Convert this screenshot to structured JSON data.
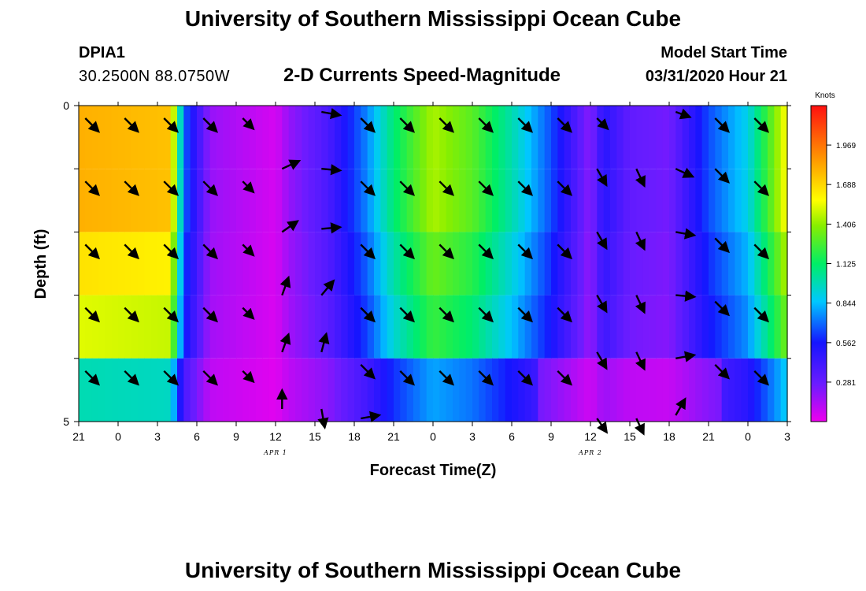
{
  "header": {
    "title": "University of Southern Mississippi Ocean Cube",
    "station": "DPIA1",
    "coords": "30.2500N 88.0750W",
    "subtitle": "2-D Currents Speed-Magnitude",
    "model_start_label": "Model Start Time",
    "model_start_value": "03/31/2020 Hour 21"
  },
  "footer": {
    "title": "University of Southern Mississippi Ocean Cube"
  },
  "chart_data": {
    "type": "heatmap",
    "title": "2-D Currents Speed-Magnitude",
    "xlabel": "Forecast Time(Z)",
    "ylabel": "Depth (ft)",
    "x_ticks": [
      "21",
      "0",
      "3",
      "6",
      "9",
      "12",
      "15",
      "18",
      "21",
      "0",
      "3",
      "6",
      "9",
      "12",
      "15",
      "18",
      "21",
      "0",
      "3"
    ],
    "x_start_hour": 21,
    "x_end_hour": 75,
    "day_labels": [
      {
        "text": "APR 1",
        "hour": 36
      },
      {
        "text": "APR 2",
        "hour": 60
      }
    ],
    "y_ticks": [
      "0",
      "5"
    ],
    "ylim": [
      0,
      5
    ],
    "depth_levels": 5,
    "colorbar": {
      "label": "Knots",
      "ticks": [
        "1.969",
        "1.688",
        "1.406",
        "1.125",
        "0.844",
        "0.562",
        "0.281"
      ],
      "min": 0,
      "max": 2.25
    },
    "speed_profile": {
      "hours": [
        21,
        28,
        29,
        31,
        36,
        37,
        40,
        43,
        45,
        48,
        51,
        54,
        57,
        60,
        61,
        63,
        66,
        69,
        72,
        75
      ],
      "values": [
        1.8,
        1.75,
        0.7,
        0.18,
        0.05,
        0.18,
        0.38,
        0.75,
        1.1,
        1.45,
        1.3,
        1.0,
        0.65,
        0.2,
        0.5,
        0.3,
        0.25,
        0.65,
        0.9,
        1.6
      ]
    },
    "depth_factors": [
      1.0,
      1.0,
      0.92,
      0.85,
      0.55,
      0.45
    ],
    "arrows": [
      {
        "hour": 21.5,
        "depth": 0.2,
        "dir": 135,
        "len": 1.0
      },
      {
        "hour": 24.5,
        "depth": 0.2,
        "dir": 135,
        "len": 1.0
      },
      {
        "hour": 27.5,
        "depth": 0.2,
        "dir": 135,
        "len": 1.0
      },
      {
        "hour": 30.5,
        "depth": 0.2,
        "dir": 135,
        "len": 1.0
      },
      {
        "hour": 33.5,
        "depth": 0.2,
        "dir": 135,
        "len": 0.8
      },
      {
        "hour": 39.5,
        "depth": 0.1,
        "dir": 100,
        "len": 1.0
      },
      {
        "hour": 42.5,
        "depth": 0.2,
        "dir": 135,
        "len": 1.0
      },
      {
        "hour": 45.5,
        "depth": 0.2,
        "dir": 135,
        "len": 1.0
      },
      {
        "hour": 48.5,
        "depth": 0.2,
        "dir": 135,
        "len": 1.0
      },
      {
        "hour": 51.5,
        "depth": 0.2,
        "dir": 135,
        "len": 1.0
      },
      {
        "hour": 54.5,
        "depth": 0.2,
        "dir": 135,
        "len": 1.0
      },
      {
        "hour": 57.5,
        "depth": 0.2,
        "dir": 135,
        "len": 1.0
      },
      {
        "hour": 60.5,
        "depth": 0.2,
        "dir": 135,
        "len": 0.8
      },
      {
        "hour": 66.5,
        "depth": 0.1,
        "dir": 110,
        "len": 0.8
      },
      {
        "hour": 69.5,
        "depth": 0.2,
        "dir": 135,
        "len": 1.0
      },
      {
        "hour": 72.5,
        "depth": 0.2,
        "dir": 135,
        "len": 1.0
      },
      {
        "hour": 21.5,
        "depth": 1.2,
        "dir": 135,
        "len": 1.0
      },
      {
        "hour": 24.5,
        "depth": 1.2,
        "dir": 135,
        "len": 1.0
      },
      {
        "hour": 27.5,
        "depth": 1.2,
        "dir": 135,
        "len": 1.0
      },
      {
        "hour": 30.5,
        "depth": 1.2,
        "dir": 135,
        "len": 1.0
      },
      {
        "hour": 33.5,
        "depth": 1.2,
        "dir": 135,
        "len": 0.8
      },
      {
        "hour": 36.5,
        "depth": 1.0,
        "dir": 65,
        "len": 1.0
      },
      {
        "hour": 39.5,
        "depth": 1.0,
        "dir": 95,
        "len": 1.0
      },
      {
        "hour": 42.5,
        "depth": 1.2,
        "dir": 135,
        "len": 1.0
      },
      {
        "hour": 45.5,
        "depth": 1.2,
        "dir": 135,
        "len": 1.0
      },
      {
        "hour": 48.5,
        "depth": 1.2,
        "dir": 135,
        "len": 1.0
      },
      {
        "hour": 51.5,
        "depth": 1.2,
        "dir": 135,
        "len": 1.0
      },
      {
        "hour": 54.5,
        "depth": 1.2,
        "dir": 135,
        "len": 1.0
      },
      {
        "hour": 57.5,
        "depth": 1.2,
        "dir": 135,
        "len": 1.0
      },
      {
        "hour": 60.5,
        "depth": 1.0,
        "dir": 150,
        "len": 1.0
      },
      {
        "hour": 63.5,
        "depth": 1.0,
        "dir": 155,
        "len": 1.0
      },
      {
        "hour": 66.5,
        "depth": 1.0,
        "dir": 115,
        "len": 1.0
      },
      {
        "hour": 69.5,
        "depth": 1.0,
        "dir": 135,
        "len": 1.0
      },
      {
        "hour": 72.5,
        "depth": 1.2,
        "dir": 135,
        "len": 1.0
      },
      {
        "hour": 21.5,
        "depth": 2.2,
        "dir": 135,
        "len": 1.0
      },
      {
        "hour": 24.5,
        "depth": 2.2,
        "dir": 135,
        "len": 1.0
      },
      {
        "hour": 27.5,
        "depth": 2.2,
        "dir": 135,
        "len": 1.0
      },
      {
        "hour": 30.5,
        "depth": 2.2,
        "dir": 135,
        "len": 1.0
      },
      {
        "hour": 33.5,
        "depth": 2.2,
        "dir": 135,
        "len": 0.8
      },
      {
        "hour": 36.5,
        "depth": 2.0,
        "dir": 55,
        "len": 1.0
      },
      {
        "hour": 39.5,
        "depth": 1.95,
        "dir": 85,
        "len": 1.0
      },
      {
        "hour": 42.5,
        "depth": 2.2,
        "dir": 135,
        "len": 1.0
      },
      {
        "hour": 45.5,
        "depth": 2.2,
        "dir": 135,
        "len": 1.0
      },
      {
        "hour": 48.5,
        "depth": 2.2,
        "dir": 135,
        "len": 1.0
      },
      {
        "hour": 51.5,
        "depth": 2.2,
        "dir": 135,
        "len": 1.0
      },
      {
        "hour": 54.5,
        "depth": 2.2,
        "dir": 135,
        "len": 1.0
      },
      {
        "hour": 57.5,
        "depth": 2.2,
        "dir": 135,
        "len": 1.0
      },
      {
        "hour": 60.5,
        "depth": 2.0,
        "dir": 150,
        "len": 1.0
      },
      {
        "hour": 63.5,
        "depth": 2.0,
        "dir": 155,
        "len": 1.0
      },
      {
        "hour": 66.5,
        "depth": 2.0,
        "dir": 100,
        "len": 1.0
      },
      {
        "hour": 69.5,
        "depth": 2.1,
        "dir": 135,
        "len": 1.0
      },
      {
        "hour": 72.5,
        "depth": 2.2,
        "dir": 135,
        "len": 1.0
      },
      {
        "hour": 21.5,
        "depth": 3.2,
        "dir": 135,
        "len": 1.0
      },
      {
        "hour": 24.5,
        "depth": 3.2,
        "dir": 135,
        "len": 1.0
      },
      {
        "hour": 27.5,
        "depth": 3.2,
        "dir": 135,
        "len": 1.0
      },
      {
        "hour": 30.5,
        "depth": 3.2,
        "dir": 135,
        "len": 1.0
      },
      {
        "hour": 33.5,
        "depth": 3.2,
        "dir": 135,
        "len": 0.8
      },
      {
        "hour": 36.5,
        "depth": 3.0,
        "dir": 20,
        "len": 1.0
      },
      {
        "hour": 39.5,
        "depth": 3.0,
        "dir": 40,
        "len": 1.0
      },
      {
        "hour": 42.5,
        "depth": 3.2,
        "dir": 135,
        "len": 1.0
      },
      {
        "hour": 45.5,
        "depth": 3.2,
        "dir": 135,
        "len": 1.0
      },
      {
        "hour": 48.5,
        "depth": 3.2,
        "dir": 135,
        "len": 1.0
      },
      {
        "hour": 51.5,
        "depth": 3.2,
        "dir": 135,
        "len": 1.0
      },
      {
        "hour": 54.5,
        "depth": 3.2,
        "dir": 135,
        "len": 1.0
      },
      {
        "hour": 57.5,
        "depth": 3.2,
        "dir": 135,
        "len": 1.0
      },
      {
        "hour": 60.5,
        "depth": 3.0,
        "dir": 150,
        "len": 1.0
      },
      {
        "hour": 63.5,
        "depth": 3.0,
        "dir": 155,
        "len": 1.0
      },
      {
        "hour": 66.5,
        "depth": 3.0,
        "dir": 95,
        "len": 1.0
      },
      {
        "hour": 69.5,
        "depth": 3.1,
        "dir": 135,
        "len": 1.0
      },
      {
        "hour": 72.5,
        "depth": 3.2,
        "dir": 135,
        "len": 1.0
      },
      {
        "hour": 21.5,
        "depth": 4.2,
        "dir": 135,
        "len": 1.0
      },
      {
        "hour": 24.5,
        "depth": 4.2,
        "dir": 135,
        "len": 1.0
      },
      {
        "hour": 27.5,
        "depth": 4.2,
        "dir": 135,
        "len": 1.0
      },
      {
        "hour": 30.5,
        "depth": 4.2,
        "dir": 135,
        "len": 1.0
      },
      {
        "hour": 33.5,
        "depth": 4.2,
        "dir": 135,
        "len": 0.8
      },
      {
        "hour": 36.5,
        "depth": 3.9,
        "dir": 20,
        "len": 1.0
      },
      {
        "hour": 39.5,
        "depth": 3.9,
        "dir": 15,
        "len": 1.0
      },
      {
        "hour": 42.5,
        "depth": 4.1,
        "dir": 135,
        "len": 1.0
      },
      {
        "hour": 45.5,
        "depth": 4.2,
        "dir": 135,
        "len": 1.0
      },
      {
        "hour": 48.5,
        "depth": 4.2,
        "dir": 135,
        "len": 1.0
      },
      {
        "hour": 51.5,
        "depth": 4.2,
        "dir": 135,
        "len": 1.0
      },
      {
        "hour": 54.5,
        "depth": 4.2,
        "dir": 135,
        "len": 1.0
      },
      {
        "hour": 57.5,
        "depth": 4.2,
        "dir": 135,
        "len": 1.0
      },
      {
        "hour": 60.5,
        "depth": 3.9,
        "dir": 150,
        "len": 1.0
      },
      {
        "hour": 63.5,
        "depth": 3.9,
        "dir": 155,
        "len": 1.0
      },
      {
        "hour": 66.5,
        "depth": 4.0,
        "dir": 80,
        "len": 1.0
      },
      {
        "hour": 69.5,
        "depth": 4.1,
        "dir": 135,
        "len": 1.0
      },
      {
        "hour": 72.5,
        "depth": 4.2,
        "dir": 135,
        "len": 1.0
      },
      {
        "hour": 36.5,
        "depth": 4.8,
        "dir": 0,
        "len": 1.0
      },
      {
        "hour": 39.5,
        "depth": 4.8,
        "dir": 170,
        "len": 1.0
      },
      {
        "hour": 42.5,
        "depth": 4.95,
        "dir": 80,
        "len": 1.0
      },
      {
        "hour": 60.5,
        "depth": 4.95,
        "dir": 145,
        "len": 0.9
      },
      {
        "hour": 63.5,
        "depth": 4.95,
        "dir": 155,
        "len": 0.9
      },
      {
        "hour": 66.5,
        "depth": 4.9,
        "dir": 30,
        "len": 1.0
      }
    ]
  }
}
